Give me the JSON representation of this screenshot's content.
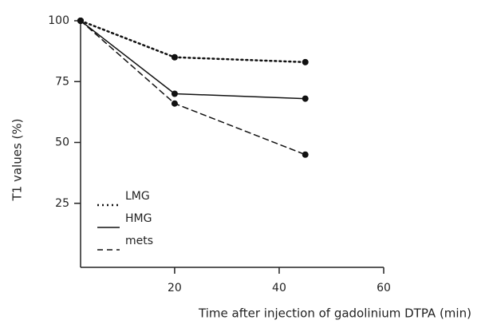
{
  "chart_data": {
    "type": "line",
    "x_label": "Time after injection of gadolinium DTPA (min)",
    "y_label": "T1 values (%)",
    "x": [
      2,
      20,
      45
    ],
    "series": [
      {
        "name": "LMG",
        "color": "#111111",
        "line_style": "dotted",
        "values": [
          100,
          85,
          83
        ]
      },
      {
        "name": "HMG",
        "color": "#111111",
        "line_style": "solid",
        "values": [
          100,
          70,
          68
        ]
      },
      {
        "name": "mets",
        "color": "#111111",
        "line_style": "dashed",
        "values": [
          100,
          66,
          45
        ]
      }
    ],
    "xlim": [
      2,
      60
    ],
    "xticks": [
      20,
      40,
      60
    ],
    "ylim": [
      0,
      100
    ],
    "yticks": [
      25,
      50,
      75,
      100
    ],
    "legend": "lower left"
  }
}
